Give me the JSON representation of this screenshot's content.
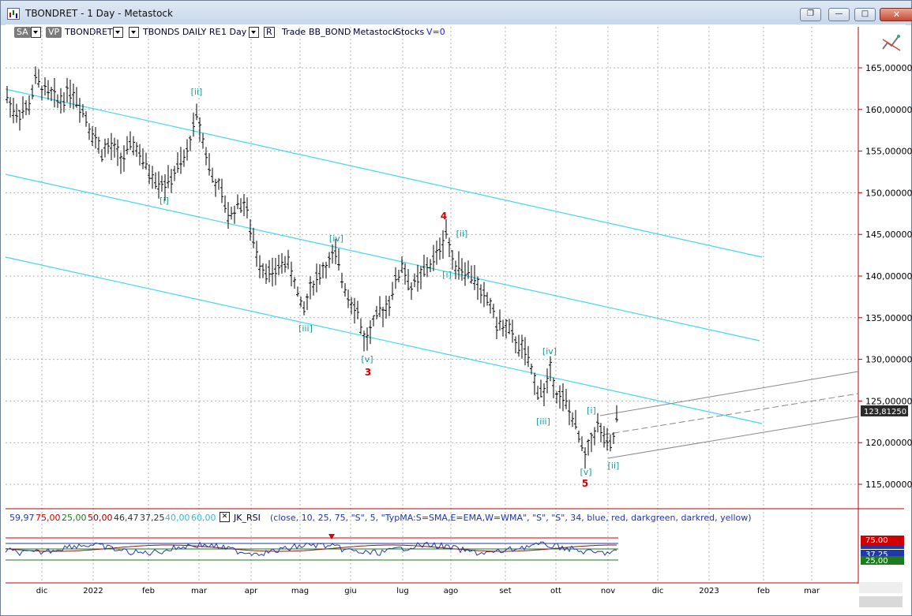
{
  "window": {
    "title": "TBONDRET - 1 Day - Metastock"
  },
  "toolbar": {
    "sa": "SA",
    "vp": "VP",
    "symbol": "TBONDRET",
    "security_name": "TBONDS DAILY RE",
    "period": "1 Day",
    "r": "R",
    "trade": "Trade",
    "bb": "BB_BOND",
    "metastock": "Metastock",
    "stocks": "Stocks",
    "v": "V=0"
  },
  "price_axis": {
    "ticks": [
      "165,000000",
      "160,000000",
      "155,000000",
      "150,000000",
      "145,000000",
      "140,000000",
      "135,000000",
      "130,000000",
      "125,000000",
      "120,000000",
      "115,000000"
    ],
    "tick_values": [
      165,
      160,
      155,
      150,
      145,
      140,
      135,
      130,
      125,
      120,
      115
    ],
    "last_price": "123,81250"
  },
  "time_axis": [
    "dic",
    "2022",
    "feb",
    "mar",
    "apr",
    "mag",
    "giu",
    "lug",
    "ago",
    "set",
    "ott",
    "nov",
    "dic",
    "2023",
    "feb",
    "mar"
  ],
  "wave_labels": [
    {
      "t": "[ii]",
      "color": "#1a9a9a"
    },
    {
      "t": "[i]",
      "color": "#1a9a9a"
    },
    {
      "t": "[iv]",
      "color": "#1a9a9a"
    },
    {
      "t": "[iii]",
      "color": "#1a9a9a"
    },
    {
      "t": "[v]",
      "color": "#1a9a9a"
    },
    {
      "t": "3",
      "color": "#d00000"
    },
    {
      "t": "4",
      "color": "#d00000"
    },
    {
      "t": "[ii]",
      "color": "#1a9a9a"
    },
    {
      "t": "[i]",
      "color": "#1a9a9a"
    },
    {
      "t": "[iv]",
      "color": "#1a9a9a"
    },
    {
      "t": "[iii]",
      "color": "#1a9a9a"
    },
    {
      "t": "[i]",
      "color": "#1a9a9a"
    },
    {
      "t": "[v]",
      "color": "#1a9a9a"
    },
    {
      "t": "[ii]",
      "color": "#1a9a9a"
    },
    {
      "t": "5",
      "color": "#d00000"
    }
  ],
  "indicator": {
    "v1": "59,97",
    "v2": "75,00",
    "v3": "25,00",
    "v4": "50,00",
    "v5": "46,47",
    "v6": "37,25",
    "v7": "40,00",
    "v8": "60,00",
    "name": "JK_RSI",
    "params": "(close,  10,  25,  75,  \"S\",  5,  \"TypMA:S=SMA,E=EMA,W=WMA\",  \"S\",  \"S\",  34,  blue,  red,  darkgreen,  darkred,  yellow)",
    "axis": [
      "75,00",
      "37,25",
      "25,00"
    ],
    "colors": {
      "v1": "#1f3aa8",
      "v2": "#d00000",
      "v3": "#1e7a1e",
      "v4": "#a00000",
      "v5": "#333333",
      "v6": "#333333",
      "v7": "#33bbdd",
      "v8": "#33bbdd"
    }
  },
  "colors": {
    "channel": "#40d8ef",
    "bars": "#000000",
    "grid": "#b0b0b0",
    "axis_red": "#c00000"
  }
}
